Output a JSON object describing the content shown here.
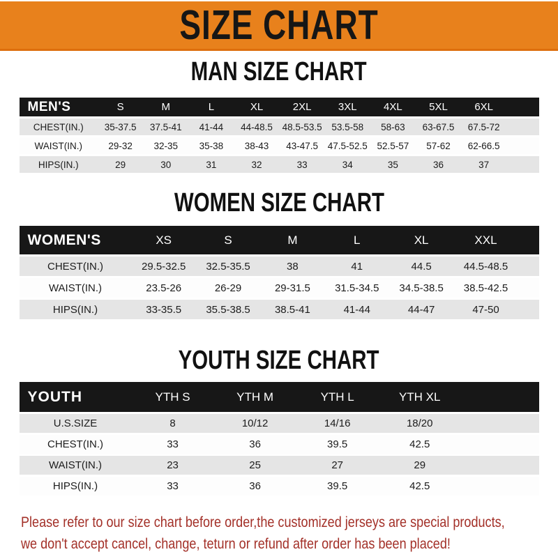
{
  "colors": {
    "accent": "#e8811c",
    "accent_dark": "#dd6e0d",
    "header_bg": "#171717",
    "row_alt": "#e5e5e5",
    "footer_red": "#a33028"
  },
  "banner": {
    "title": "SIZE CHART"
  },
  "sections": [
    {
      "id": "men",
      "heading": "MAN SIZE CHART",
      "header_label": "MEN'S",
      "columns": [
        "S",
        "M",
        "L",
        "XL",
        "2XL",
        "3XL",
        "4XL",
        "5XL",
        "6XL"
      ],
      "rows": [
        {
          "label": "CHEST(IN.)",
          "values": [
            "35-37.5",
            "37.5-41",
            "41-44",
            "44-48.5",
            "48.5-53.5",
            "53.5-58",
            "58-63",
            "63-67.5",
            "67.5-72"
          ]
        },
        {
          "label": "WAIST(IN.)",
          "values": [
            "29-32",
            "32-35",
            "35-38",
            "38-43",
            "43-47.5",
            "47.5-52.5",
            "52.5-57",
            "57-62",
            "62-66.5"
          ]
        },
        {
          "label": "HIPS(IN.)",
          "values": [
            "29",
            "30",
            "31",
            "32",
            "33",
            "34",
            "35",
            "36",
            "37"
          ]
        }
      ]
    },
    {
      "id": "women",
      "heading": "WOMEN SIZE CHART",
      "header_label": "WOMEN'S",
      "columns": [
        "XS",
        "S",
        "M",
        "L",
        "XL",
        "XXL"
      ],
      "rows": [
        {
          "label": "CHEST(IN.)",
          "values": [
            "29.5-32.5",
            "32.5-35.5",
            "38",
            "41",
            "44.5",
            "44.5-48.5"
          ]
        },
        {
          "label": "WAIST(IN.)",
          "values": [
            "23.5-26",
            "26-29",
            "29-31.5",
            "31.5-34.5",
            "34.5-38.5",
            "38.5-42.5"
          ]
        },
        {
          "label": "HIPS(IN.)",
          "values": [
            "33-35.5",
            "35.5-38.5",
            "38.5-41",
            "41-44",
            "44-47",
            "47-50"
          ]
        }
      ]
    },
    {
      "id": "youth",
      "heading": "YOUTH SIZE CHART",
      "header_label": "YOUTH",
      "columns": [
        "YTH S",
        "YTH M",
        "YTH L",
        "YTH XL"
      ],
      "rows": [
        {
          "label": "U.S.SIZE",
          "values": [
            "8",
            "10/12",
            "14/16",
            "18/20"
          ]
        },
        {
          "label": "CHEST(IN.)",
          "values": [
            "33",
            "36",
            "39.5",
            "42.5"
          ]
        },
        {
          "label": "WAIST(IN.)",
          "values": [
            "23",
            "25",
            "27",
            "29"
          ]
        },
        {
          "label": "HIPS(IN.)",
          "values": [
            "33",
            "36",
            "39.5",
            "42.5"
          ]
        }
      ]
    }
  ],
  "footer": {
    "line1": "Please refer to our size chart before order,the customized jerseys are special products,",
    "line2": "we don't accept cancel, change, teturn or refund after order has been placed!"
  }
}
